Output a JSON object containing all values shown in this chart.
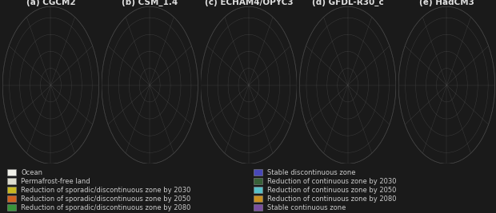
{
  "titles": [
    "(a) CGCM2",
    "(b) CSM_1.4",
    "(c) ECHAM4/OPYC3",
    "(d) GFDL-R30_c",
    "(e) HadCM3"
  ],
  "figure_bg": "#1a1a1a",
  "title_color": "#e0e0e0",
  "title_fontsize": 7.5,
  "legend_text_color": "#cccccc",
  "legend_fontsize": 6.0,
  "colors": {
    "ocean": "#0a0a0a",
    "land": "#ddddd0",
    "stable_continuous": "#7a50a0",
    "stable_discontinuous": "#4848b8",
    "red_sporadic_2030": "#c8b820",
    "red_sporadic_2050": "#d06020",
    "red_sporadic_2080": "#38943a",
    "red_continuous_2030": "#386038",
    "red_continuous_2050": "#58c0c8",
    "red_continuous_2080": "#c89020"
  },
  "legend_left": [
    {
      "color": "#f0f0e8",
      "edgecolor": "#888888",
      "label": "Ocean"
    },
    {
      "color": "#ddddd0",
      "edgecolor": "#888888",
      "label": "Permafrost-free land"
    },
    {
      "color": "#c8b820",
      "edgecolor": "#888888",
      "label": "Reduction of sporadic/discontinuous zone by 2030"
    },
    {
      "color": "#d06020",
      "edgecolor": "#888888",
      "label": "Reduction of sporadic/discontinuous zone by 2050"
    },
    {
      "color": "#38943a",
      "edgecolor": "#888888",
      "label": "Reduction of sporadic/discontinuous zone by 2080"
    }
  ],
  "legend_right": [
    {
      "color": "#4848b8",
      "edgecolor": "#888888",
      "label": "Stable discontinuous zone"
    },
    {
      "color": "#386038",
      "edgecolor": "#888888",
      "label": "Reduction of continuous zone by 2030"
    },
    {
      "color": "#58c0c8",
      "edgecolor": "#888888",
      "label": "Reduction of continuous zone by 2050"
    },
    {
      "color": "#c89020",
      "edgecolor": "#888888",
      "label": "Reduction of continuous zone by 2080"
    },
    {
      "color": "#7a50a0",
      "edgecolor": "#888888",
      "label": "Stable continuous zone"
    }
  ],
  "figsize": [
    6.2,
    2.67
  ],
  "dpi": 100
}
